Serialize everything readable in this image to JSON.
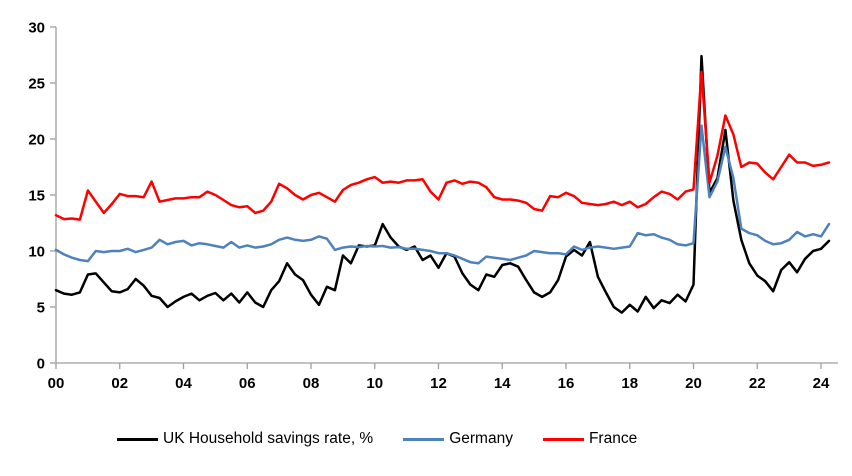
{
  "chart_data": {
    "type": "line",
    "x_start_year": 2000,
    "x_frequency": "quarterly",
    "x_end": "2024Q2",
    "ylim": [
      0,
      30
    ],
    "yticks": [
      0,
      5,
      10,
      15,
      20,
      25,
      30
    ],
    "xtick_labels": [
      "00",
      "02",
      "04",
      "06",
      "08",
      "10",
      "12",
      "14",
      "16",
      "18",
      "20",
      "22",
      "24"
    ],
    "grid": "off",
    "legend_position": "bottom",
    "axis_color": "#9e9e9e",
    "series": [
      {
        "name": "UK Household savings rate, %",
        "color": "#000000",
        "values": [
          6.5,
          6.2,
          6.1,
          6.3,
          7.9,
          8.0,
          7.2,
          6.4,
          6.3,
          6.6,
          7.5,
          6.9,
          6.0,
          5.8,
          5.0,
          5.5,
          5.9,
          6.2,
          5.6,
          6.0,
          6.25,
          5.6,
          6.2,
          5.4,
          6.3,
          5.4,
          5.0,
          6.5,
          7.3,
          8.9,
          7.9,
          7.4,
          6.1,
          5.2,
          6.8,
          6.5,
          9.6,
          8.9,
          10.5,
          10.4,
          10.5,
          12.4,
          11.2,
          10.4,
          10.1,
          10.4,
          9.2,
          9.6,
          8.5,
          9.8,
          9.5,
          8.0,
          7.0,
          6.5,
          7.9,
          7.7,
          8.75,
          8.9,
          8.6,
          7.4,
          6.3,
          5.9,
          6.3,
          7.4,
          9.5,
          10.1,
          9.6,
          10.8,
          7.7,
          6.3,
          5.0,
          4.5,
          5.2,
          4.6,
          5.9,
          4.9,
          5.6,
          5.35,
          6.1,
          5.5,
          7.0,
          27.4,
          15.2,
          16.5,
          20.8,
          14.5,
          11.0,
          8.9,
          7.8,
          7.3,
          6.4,
          8.3,
          9.0,
          8.1,
          9.3,
          10.0,
          10.2,
          10.9
        ]
      },
      {
        "name": "Germany",
        "color": "#4F81BD",
        "values": [
          10.1,
          9.7,
          9.4,
          9.2,
          9.1,
          10.0,
          9.9,
          10.0,
          10.0,
          10.2,
          9.9,
          10.1,
          10.3,
          11.0,
          10.6,
          10.8,
          10.9,
          10.5,
          10.7,
          10.6,
          10.45,
          10.3,
          10.8,
          10.3,
          10.5,
          10.3,
          10.4,
          10.6,
          11.0,
          11.2,
          11.0,
          10.9,
          11.0,
          11.3,
          11.1,
          10.1,
          10.3,
          10.4,
          10.35,
          10.45,
          10.4,
          10.45,
          10.3,
          10.35,
          10.2,
          10.2,
          10.1,
          10.0,
          9.8,
          9.8,
          9.6,
          9.3,
          9.0,
          8.9,
          9.5,
          9.4,
          9.3,
          9.2,
          9.4,
          9.6,
          10.0,
          9.9,
          9.8,
          9.8,
          9.7,
          10.4,
          10.1,
          10.3,
          10.4,
          10.3,
          10.2,
          10.3,
          10.4,
          11.6,
          11.4,
          11.5,
          11.2,
          11.0,
          10.6,
          10.5,
          10.7,
          21.2,
          14.8,
          16.2,
          19.3,
          16.5,
          12.0,
          11.6,
          11.4,
          10.9,
          10.6,
          10.7,
          11.0,
          11.7,
          11.3,
          11.5,
          11.3,
          12.4
        ]
      },
      {
        "name": "France",
        "color": "#FF0000",
        "values": [
          13.2,
          12.85,
          12.9,
          12.8,
          15.4,
          14.4,
          13.4,
          14.2,
          15.1,
          14.9,
          14.9,
          14.8,
          16.2,
          14.4,
          14.55,
          14.7,
          14.7,
          14.8,
          14.8,
          15.3,
          15.0,
          14.55,
          14.1,
          13.9,
          14.0,
          13.4,
          13.6,
          14.4,
          16.0,
          15.6,
          15.0,
          14.6,
          15.0,
          15.2,
          14.8,
          14.4,
          15.45,
          15.9,
          16.1,
          16.4,
          16.6,
          16.1,
          16.2,
          16.1,
          16.3,
          16.3,
          16.4,
          15.3,
          14.6,
          16.1,
          16.3,
          16.0,
          16.2,
          16.1,
          15.7,
          14.8,
          14.6,
          14.6,
          14.5,
          14.3,
          13.75,
          13.6,
          14.9,
          14.8,
          15.2,
          14.9,
          14.3,
          14.2,
          14.1,
          14.2,
          14.4,
          14.1,
          14.4,
          13.9,
          14.2,
          14.8,
          15.3,
          15.1,
          14.6,
          15.3,
          15.5,
          26.0,
          16.1,
          18.5,
          22.1,
          20.4,
          17.5,
          17.9,
          17.8,
          17.0,
          16.4,
          17.5,
          18.6,
          17.9,
          17.9,
          17.6,
          17.7,
          17.9
        ]
      }
    ]
  },
  "legend": {
    "items": [
      {
        "label": "UK Household savings rate, %",
        "color": "#000000"
      },
      {
        "label": "Germany",
        "color": "#4F81BD"
      },
      {
        "label": "France",
        "color": "#FF0000"
      }
    ]
  }
}
